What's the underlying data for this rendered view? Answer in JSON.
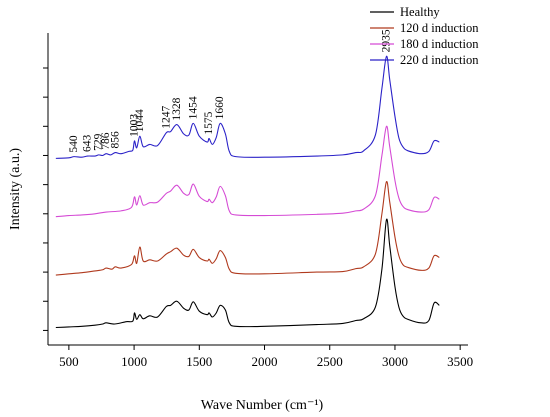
{
  "chart_data": {
    "type": "line",
    "title": "",
    "xlabel": "Wave Number (cm⁻¹)",
    "ylabel": "Intensity (a.u.)",
    "xlim": [
      340,
      3560
    ],
    "x_ticks": [
      500,
      1000,
      1500,
      2000,
      2500,
      3000,
      3500
    ],
    "y_ticks_labeled": false,
    "grid": false,
    "legend_position": "top-right",
    "series": [
      {
        "name": "Healthy",
        "color": "#000000",
        "baseline": 0.05,
        "points": [
          [
            400,
            0.0
          ],
          [
            500,
            0.01
          ],
          [
            600,
            0.02
          ],
          [
            700,
            0.04
          ],
          [
            760,
            0.06
          ],
          [
            786,
            0.08
          ],
          [
            850,
            0.06
          ],
          [
            940,
            0.1
          ],
          [
            990,
            0.11
          ],
          [
            1003,
            0.25
          ],
          [
            1020,
            0.14
          ],
          [
            1044,
            0.22
          ],
          [
            1070,
            0.15
          ],
          [
            1120,
            0.2
          ],
          [
            1180,
            0.18
          ],
          [
            1247,
            0.36
          ],
          [
            1280,
            0.38
          ],
          [
            1328,
            0.45
          ],
          [
            1380,
            0.33
          ],
          [
            1420,
            0.3
          ],
          [
            1454,
            0.44
          ],
          [
            1500,
            0.28
          ],
          [
            1560,
            0.22
          ],
          [
            1575,
            0.25
          ],
          [
            1600,
            0.18
          ],
          [
            1630,
            0.25
          ],
          [
            1660,
            0.38
          ],
          [
            1700,
            0.3
          ],
          [
            1730,
            0.08
          ],
          [
            1780,
            0.02
          ],
          [
            2000,
            0.02
          ],
          [
            2400,
            0.05
          ],
          [
            2600,
            0.07
          ],
          [
            2700,
            0.12
          ],
          [
            2760,
            0.15
          ],
          [
            2850,
            0.35
          ],
          [
            2900,
            1.0
          ],
          [
            2935,
            1.85
          ],
          [
            2960,
            1.4
          ],
          [
            3000,
            0.7
          ],
          [
            3030,
            0.35
          ],
          [
            3060,
            0.2
          ],
          [
            3100,
            0.14
          ],
          [
            3200,
            0.08
          ],
          [
            3260,
            0.12
          ],
          [
            3300,
            0.42
          ],
          [
            3340,
            0.38
          ]
        ]
      },
      {
        "name": "120 d induction",
        "color": "#b03a1e",
        "baseline": 0.95,
        "points": [
          [
            400,
            0.0
          ],
          [
            500,
            0.02
          ],
          [
            600,
            0.04
          ],
          [
            700,
            0.07
          ],
          [
            760,
            0.09
          ],
          [
            786,
            0.12
          ],
          [
            830,
            0.1
          ],
          [
            856,
            0.14
          ],
          [
            900,
            0.12
          ],
          [
            980,
            0.18
          ],
          [
            1003,
            0.33
          ],
          [
            1020,
            0.2
          ],
          [
            1044,
            0.48
          ],
          [
            1070,
            0.24
          ],
          [
            1120,
            0.26
          ],
          [
            1180,
            0.24
          ],
          [
            1247,
            0.36
          ],
          [
            1280,
            0.4
          ],
          [
            1328,
            0.46
          ],
          [
            1380,
            0.34
          ],
          [
            1420,
            0.32
          ],
          [
            1454,
            0.44
          ],
          [
            1500,
            0.3
          ],
          [
            1560,
            0.24
          ],
          [
            1575,
            0.27
          ],
          [
            1600,
            0.2
          ],
          [
            1630,
            0.28
          ],
          [
            1660,
            0.42
          ],
          [
            1700,
            0.3
          ],
          [
            1730,
            0.1
          ],
          [
            1780,
            0.03
          ],
          [
            2000,
            0.02
          ],
          [
            2400,
            0.05
          ],
          [
            2600,
            0.06
          ],
          [
            2700,
            0.11
          ],
          [
            2760,
            0.14
          ],
          [
            2850,
            0.36
          ],
          [
            2900,
            1.05
          ],
          [
            2935,
            1.6
          ],
          [
            2960,
            1.25
          ],
          [
            3000,
            0.65
          ],
          [
            3030,
            0.33
          ],
          [
            3060,
            0.18
          ],
          [
            3100,
            0.13
          ],
          [
            3200,
            0.08
          ],
          [
            3260,
            0.12
          ],
          [
            3300,
            0.33
          ],
          [
            3340,
            0.3
          ]
        ]
      },
      {
        "name": "180 d induction",
        "color": "#d54bd5",
        "baseline": 1.95,
        "points": [
          [
            400,
            0.0
          ],
          [
            500,
            0.02
          ],
          [
            600,
            0.03
          ],
          [
            700,
            0.05
          ],
          [
            786,
            0.08
          ],
          [
            900,
            0.1
          ],
          [
            980,
            0.16
          ],
          [
            1003,
            0.34
          ],
          [
            1020,
            0.2
          ],
          [
            1044,
            0.36
          ],
          [
            1070,
            0.2
          ],
          [
            1120,
            0.24
          ],
          [
            1180,
            0.25
          ],
          [
            1247,
            0.4
          ],
          [
            1280,
            0.44
          ],
          [
            1328,
            0.54
          ],
          [
            1380,
            0.4
          ],
          [
            1420,
            0.38
          ],
          [
            1454,
            0.56
          ],
          [
            1500,
            0.35
          ],
          [
            1560,
            0.26
          ],
          [
            1575,
            0.3
          ],
          [
            1600,
            0.24
          ],
          [
            1630,
            0.34
          ],
          [
            1660,
            0.52
          ],
          [
            1700,
            0.36
          ],
          [
            1730,
            0.1
          ],
          [
            1780,
            0.03
          ],
          [
            2000,
            0.02
          ],
          [
            2400,
            0.04
          ],
          [
            2600,
            0.06
          ],
          [
            2700,
            0.1
          ],
          [
            2760,
            0.13
          ],
          [
            2850,
            0.36
          ],
          [
            2900,
            1.05
          ],
          [
            2935,
            1.55
          ],
          [
            2960,
            1.2
          ],
          [
            3000,
            0.62
          ],
          [
            3030,
            0.32
          ],
          [
            3060,
            0.18
          ],
          [
            3100,
            0.12
          ],
          [
            3200,
            0.08
          ],
          [
            3260,
            0.12
          ],
          [
            3300,
            0.33
          ],
          [
            3340,
            0.3
          ]
        ]
      },
      {
        "name": "220 d induction",
        "color": "#2b22c8",
        "baseline": 2.95,
        "points": [
          [
            400,
            0.0
          ],
          [
            500,
            0.01
          ],
          [
            540,
            0.03
          ],
          [
            600,
            0.02
          ],
          [
            643,
            0.04
          ],
          [
            700,
            0.04
          ],
          [
            729,
            0.06
          ],
          [
            760,
            0.05
          ],
          [
            786,
            0.08
          ],
          [
            820,
            0.06
          ],
          [
            856,
            0.1
          ],
          [
            900,
            0.08
          ],
          [
            960,
            0.12
          ],
          [
            990,
            0.14
          ],
          [
            1003,
            0.3
          ],
          [
            1020,
            0.18
          ],
          [
            1044,
            0.38
          ],
          [
            1070,
            0.2
          ],
          [
            1120,
            0.24
          ],
          [
            1180,
            0.22
          ],
          [
            1247,
            0.44
          ],
          [
            1280,
            0.46
          ],
          [
            1328,
            0.58
          ],
          [
            1380,
            0.42
          ],
          [
            1420,
            0.4
          ],
          [
            1454,
            0.6
          ],
          [
            1500,
            0.38
          ],
          [
            1560,
            0.28
          ],
          [
            1575,
            0.34
          ],
          [
            1600,
            0.24
          ],
          [
            1630,
            0.36
          ],
          [
            1660,
            0.6
          ],
          [
            1700,
            0.42
          ],
          [
            1730,
            0.12
          ],
          [
            1780,
            0.03
          ],
          [
            2000,
            0.02
          ],
          [
            2400,
            0.04
          ],
          [
            2600,
            0.06
          ],
          [
            2700,
            0.1
          ],
          [
            2760,
            0.13
          ],
          [
            2850,
            0.4
          ],
          [
            2900,
            1.2
          ],
          [
            2935,
            1.75
          ],
          [
            2960,
            1.35
          ],
          [
            3000,
            0.72
          ],
          [
            3030,
            0.35
          ],
          [
            3060,
            0.2
          ],
          [
            3100,
            0.13
          ],
          [
            3200,
            0.08
          ],
          [
            3260,
            0.12
          ],
          [
            3300,
            0.3
          ],
          [
            3340,
            0.28
          ]
        ]
      }
    ],
    "peak_annotations": [
      {
        "label": "540",
        "x": 540
      },
      {
        "label": "643",
        "x": 643
      },
      {
        "label": "729",
        "x": 729
      },
      {
        "label": "786",
        "x": 786
      },
      {
        "label": "856",
        "x": 856
      },
      {
        "label": "1003",
        "x": 1003
      },
      {
        "label": "1044",
        "x": 1044
      },
      {
        "label": "1247",
        "x": 1247
      },
      {
        "label": "1328",
        "x": 1328
      },
      {
        "label": "1454",
        "x": 1454
      },
      {
        "label": "1575",
        "x": 1575
      },
      {
        "label": "1660",
        "x": 1660
      },
      {
        "label": "2935",
        "x": 2935
      }
    ]
  }
}
